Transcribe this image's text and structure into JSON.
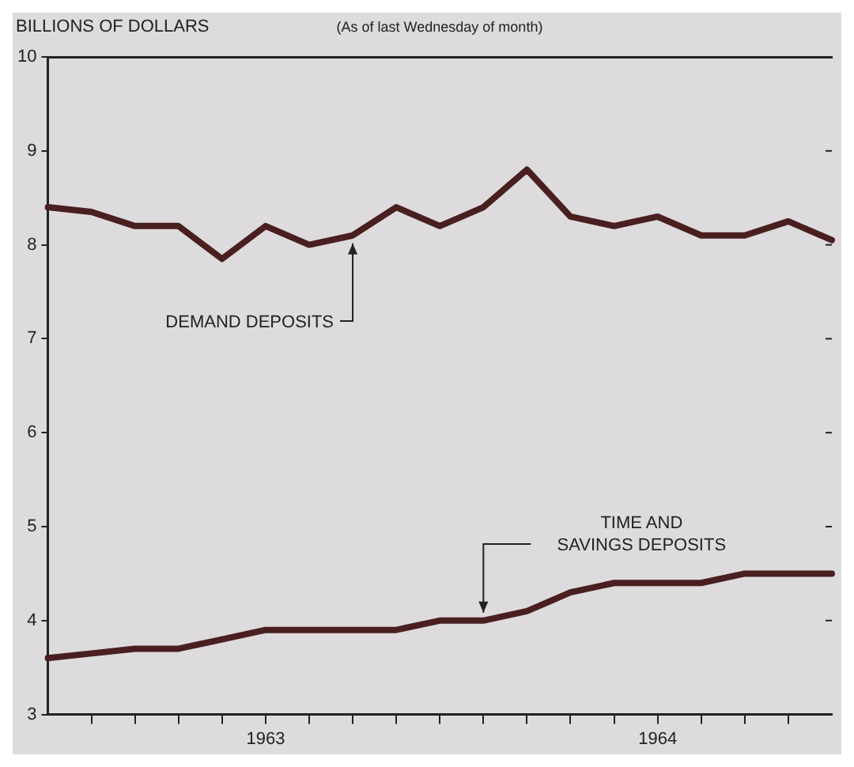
{
  "chart_data": {
    "type": "line",
    "title": "(As of last Wednesday of month)",
    "ylabel": "BILLIONS OF DOLLARS",
    "categories": [
      null,
      null,
      null,
      null,
      null,
      "1963",
      null,
      null,
      null,
      null,
      null,
      null,
      null,
      null,
      "1964",
      null,
      null,
      null,
      null
    ],
    "ylim": [
      3,
      10
    ],
    "yticks": [
      3,
      4,
      5,
      6,
      7,
      8,
      9,
      10
    ],
    "series": [
      {
        "name": "DEMAND DEPOSITS",
        "color": "#4a1f1f",
        "values": [
          8.4,
          8.35,
          8.2,
          8.2,
          7.85,
          8.2,
          8.0,
          8.1,
          8.4,
          8.2,
          8.4,
          8.8,
          8.3,
          8.2,
          8.3,
          8.1,
          8.1,
          8.25,
          8.05
        ]
      },
      {
        "name": "TIME AND SAVINGS DEPOSITS",
        "color": "#4a1f1f",
        "values": [
          3.6,
          3.65,
          3.7,
          3.7,
          3.8,
          3.9,
          3.9,
          3.9,
          3.9,
          4.0,
          4.0,
          4.1,
          4.3,
          4.4,
          4.4,
          4.4,
          4.5,
          4.5,
          4.5
        ]
      }
    ],
    "grid": false,
    "legend": false,
    "marker": "none",
    "line_style": "solid"
  }
}
